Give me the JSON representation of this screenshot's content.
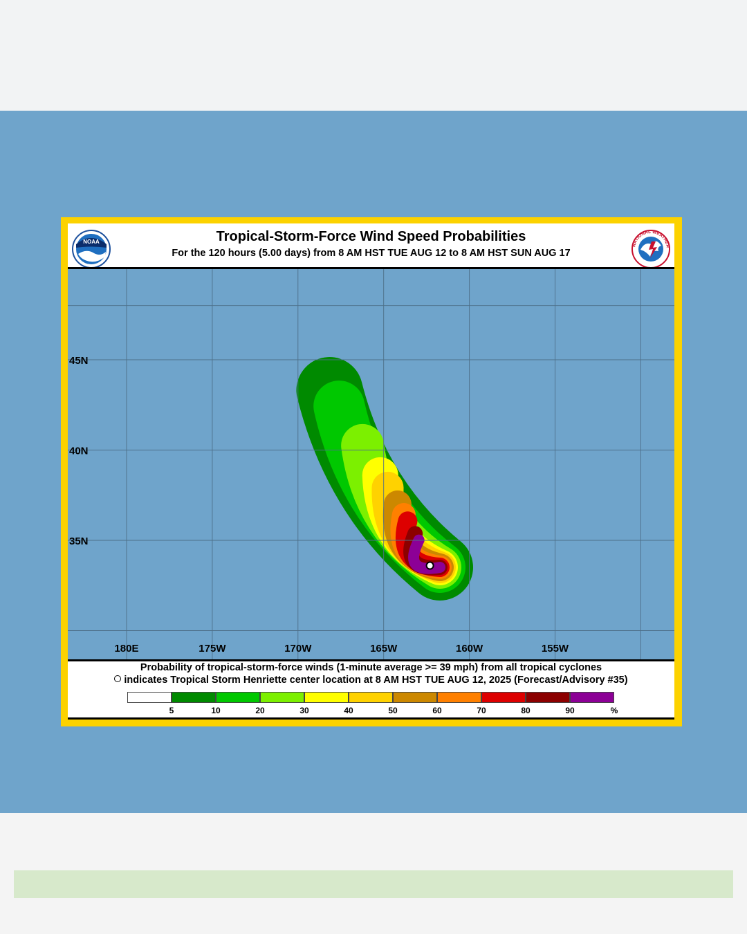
{
  "header": {
    "title": "Tropical-Storm-Force Wind Speed Probabilities",
    "subtitle": "For the 120 hours (5.00 days) from 8 AM HST TUE AUG 12 to 8 AM HST SUN AUG 17"
  },
  "logos": {
    "left": {
      "icon": "noaa-logo",
      "text": "NOAA"
    },
    "right": {
      "icon": "nws-logo",
      "text": "NATIONAL WEATHER SERVICE"
    }
  },
  "map": {
    "lon_labels": [
      "180E",
      "175W",
      "170W",
      "165W",
      "160W",
      "155W"
    ],
    "lat_labels": [
      "45N",
      "40N",
      "35N"
    ],
    "storm_center": {
      "name": "Tropical Storm Henriette",
      "lat": 33.6,
      "lon": -162.3
    },
    "colors": {
      "ocean": "#6fa4cb",
      "grid": "#4d6f88"
    }
  },
  "caption": {
    "line1": "Probability of tropical-storm-force winds (1-minute average >= 39 mph) from all tropical cyclones",
    "line2": "indicates Tropical Storm Henriette center location at 8 AM HST TUE AUG 12, 2025 (Forecast/Advisory #35)"
  },
  "legend": {
    "colors": [
      "#ffffff",
      "#008a00",
      "#00c800",
      "#7cf000",
      "#ffff00",
      "#ffd200",
      "#cc8800",
      "#ff8000",
      "#dd0000",
      "#8c0000",
      "#8c0096"
    ],
    "labels": [
      "5",
      "10",
      "20",
      "30",
      "40",
      "50",
      "60",
      "70",
      "80",
      "90"
    ],
    "unit": "%"
  }
}
